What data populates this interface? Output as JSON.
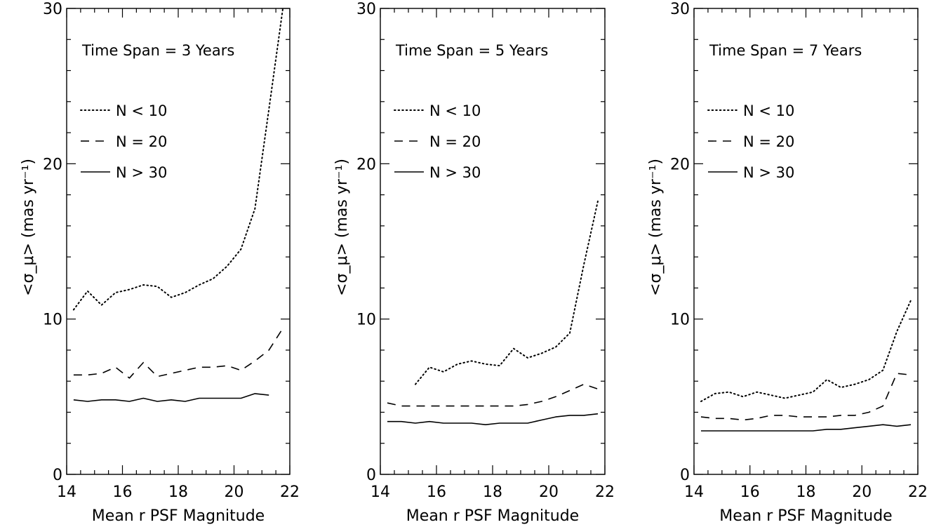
{
  "chart_data": [
    {
      "type": "line",
      "title": "",
      "annotation": "Time Span = 3 Years",
      "xlabel": "Mean r PSF Magnitude",
      "ylabel": "<σ_μ> (mas yr⁻¹)",
      "xlim": [
        14,
        22
      ],
      "ylim": [
        0,
        30
      ],
      "x_ticks": [
        "14",
        "16",
        "18",
        "20",
        "22"
      ],
      "y_ticks": [
        "0",
        "10",
        "20",
        "30"
      ],
      "legend_position": "upper-left",
      "series": [
        {
          "name": "N < 10",
          "style": "dotted",
          "x": [
            14.25,
            14.75,
            15.25,
            15.75,
            16.25,
            16.75,
            17.25,
            17.75,
            18.25,
            18.75,
            19.25,
            19.75,
            20.25,
            20.75,
            21.25,
            21.75
          ],
          "y": [
            10.6,
            11.8,
            10.9,
            11.7,
            11.9,
            12.2,
            12.1,
            11.4,
            11.7,
            12.2,
            12.6,
            13.4,
            14.5,
            17.1,
            23.5,
            30.0
          ]
        },
        {
          "name": "N = 20",
          "style": "dashed",
          "x": [
            14.25,
            14.75,
            15.25,
            15.75,
            16.25,
            16.75,
            17.25,
            17.75,
            18.25,
            18.75,
            19.25,
            19.75,
            20.25,
            20.75,
            21.25,
            21.75
          ],
          "y": [
            6.4,
            6.4,
            6.5,
            6.9,
            6.2,
            7.2,
            6.3,
            6.5,
            6.7,
            6.9,
            6.9,
            7.0,
            6.7,
            7.3,
            8.0,
            9.4
          ]
        },
        {
          "name": "N > 30",
          "style": "solid",
          "x": [
            14.25,
            14.75,
            15.25,
            15.75,
            16.25,
            16.75,
            17.25,
            17.75,
            18.25,
            18.75,
            19.25,
            19.75,
            20.25,
            20.75,
            21.25
          ],
          "y": [
            4.8,
            4.7,
            4.8,
            4.8,
            4.7,
            4.9,
            4.7,
            4.8,
            4.7,
            4.9,
            4.9,
            4.9,
            4.9,
            5.2,
            5.1
          ]
        }
      ]
    },
    {
      "type": "line",
      "title": "",
      "annotation": "Time Span = 5 Years",
      "xlabel": "Mean r PSF Magnitude",
      "ylabel": "<σ_μ> (mas yr⁻¹)",
      "xlim": [
        14,
        22
      ],
      "ylim": [
        0,
        30
      ],
      "x_ticks": [
        "14",
        "16",
        "18",
        "20",
        "22"
      ],
      "y_ticks": [
        "0",
        "10",
        "20",
        "30"
      ],
      "legend_position": "upper-left",
      "series": [
        {
          "name": "N < 10",
          "style": "dotted",
          "x": [
            15.25,
            15.75,
            16.25,
            16.75,
            17.25,
            17.75,
            18.25,
            18.75,
            19.25,
            19.75,
            20.25,
            20.75,
            21.25,
            21.75
          ],
          "y": [
            5.8,
            6.9,
            6.6,
            7.1,
            7.3,
            7.1,
            7.0,
            8.1,
            7.5,
            7.8,
            8.2,
            9.1,
            13.5,
            17.6
          ]
        },
        {
          "name": "N = 20",
          "style": "dashed",
          "x": [
            14.25,
            14.75,
            15.25,
            15.75,
            16.25,
            16.75,
            17.25,
            17.75,
            18.25,
            18.75,
            19.25,
            19.75,
            20.25,
            20.75,
            21.25,
            21.75
          ],
          "y": [
            4.6,
            4.4,
            4.4,
            4.4,
            4.4,
            4.4,
            4.4,
            4.4,
            4.4,
            4.4,
            4.5,
            4.7,
            5.0,
            5.4,
            5.8,
            5.5
          ]
        },
        {
          "name": "N > 30",
          "style": "solid",
          "x": [
            14.25,
            14.75,
            15.25,
            15.75,
            16.25,
            16.75,
            17.25,
            17.75,
            18.25,
            18.75,
            19.25,
            19.75,
            20.25,
            20.75,
            21.25,
            21.75
          ],
          "y": [
            3.4,
            3.4,
            3.3,
            3.4,
            3.3,
            3.3,
            3.3,
            3.2,
            3.3,
            3.3,
            3.3,
            3.5,
            3.7,
            3.8,
            3.8,
            3.9
          ]
        }
      ]
    },
    {
      "type": "line",
      "title": "",
      "annotation": "Time Span = 7 Years",
      "xlabel": "Mean r PSF Magnitude",
      "ylabel": "<σ_μ> (mas yr⁻¹)",
      "xlim": [
        14,
        22
      ],
      "ylim": [
        0,
        30
      ],
      "x_ticks": [
        "14",
        "16",
        "18",
        "20",
        "22"
      ],
      "y_ticks": [
        "0",
        "10",
        "20",
        "30"
      ],
      "legend_position": "upper-left",
      "series": [
        {
          "name": "N < 10",
          "style": "dotted",
          "x": [
            14.25,
            14.75,
            15.25,
            15.75,
            16.25,
            16.75,
            17.25,
            17.75,
            18.25,
            18.75,
            19.25,
            19.75,
            20.25,
            20.75,
            21.25,
            21.75
          ],
          "y": [
            4.7,
            5.2,
            5.3,
            5.0,
            5.3,
            5.1,
            4.9,
            5.1,
            5.3,
            6.1,
            5.6,
            5.8,
            6.1,
            6.7,
            9.2,
            11.2
          ]
        },
        {
          "name": "N = 20",
          "style": "dashed",
          "x": [
            14.25,
            14.75,
            15.25,
            15.75,
            16.25,
            16.75,
            17.25,
            17.75,
            18.25,
            18.75,
            19.25,
            19.75,
            20.25,
            20.75,
            21.25,
            21.75
          ],
          "y": [
            3.7,
            3.6,
            3.6,
            3.5,
            3.6,
            3.8,
            3.8,
            3.7,
            3.7,
            3.7,
            3.8,
            3.8,
            4.0,
            4.4,
            6.5,
            6.4
          ]
        },
        {
          "name": "N > 30",
          "style": "solid",
          "x": [
            14.25,
            14.75,
            15.25,
            15.75,
            16.25,
            16.75,
            17.25,
            17.75,
            18.25,
            18.75,
            19.25,
            19.75,
            20.25,
            20.75,
            21.25,
            21.75
          ],
          "y": [
            2.8,
            2.8,
            2.8,
            2.8,
            2.8,
            2.8,
            2.8,
            2.8,
            2.8,
            2.9,
            2.9,
            3.0,
            3.1,
            3.2,
            3.1,
            3.2
          ]
        }
      ]
    }
  ]
}
